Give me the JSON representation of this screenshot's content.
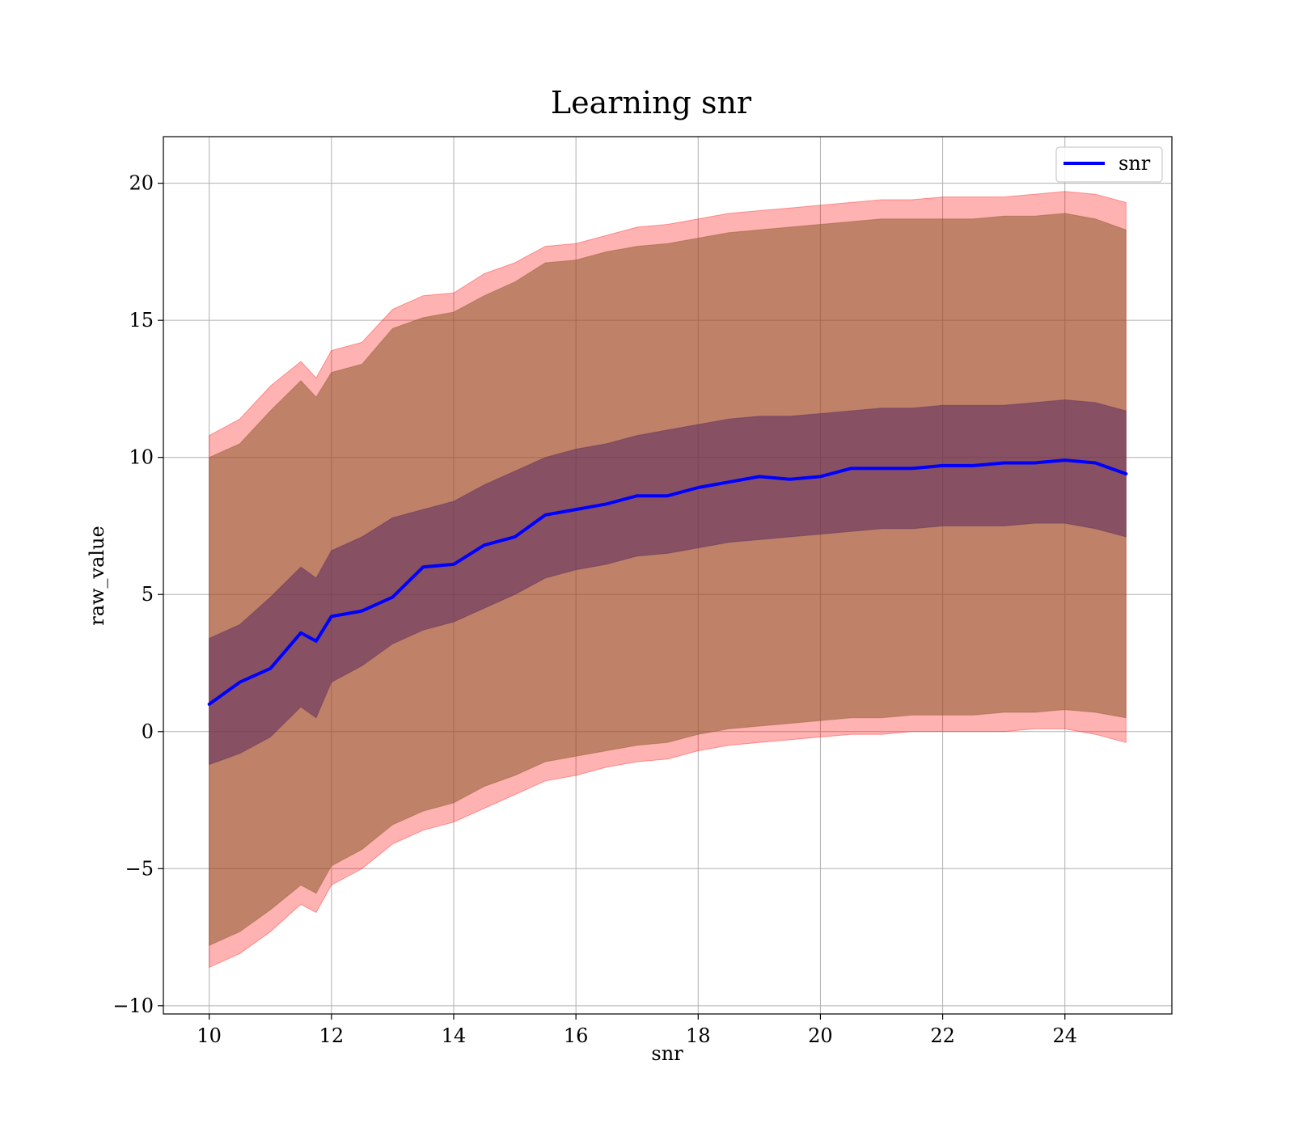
{
  "chart_data": {
    "type": "line",
    "title": "Learning snr",
    "xlabel": "snr",
    "ylabel": "raw_value",
    "xlim": [
      9.25,
      25.75
    ],
    "ylim": [
      -10.3,
      21.7
    ],
    "x_ticks": [
      10,
      12,
      14,
      16,
      18,
      20,
      22,
      24
    ],
    "x_tick_labels": [
      "10",
      "12",
      "14",
      "16",
      "18",
      "20",
      "22",
      "24"
    ],
    "y_ticks": [
      -10,
      -5,
      0,
      5,
      10,
      15,
      20
    ],
    "y_tick_labels": [
      "−10",
      "−5",
      "0",
      "5",
      "10",
      "15",
      "20"
    ],
    "grid": true,
    "legend": {
      "position": "upper right",
      "entries": [
        "snr"
      ]
    },
    "colors": {
      "line": "#0000ff",
      "band_outer": "#ff0000",
      "band_middle": "#8b5a2b",
      "band_inner": "#5a2a5f",
      "grid": "#b0b0b0"
    },
    "x": [
      10.0,
      10.5,
      11.0,
      11.5,
      11.75,
      12.0,
      12.5,
      13.0,
      13.5,
      14.0,
      14.5,
      15.0,
      15.5,
      16.0,
      16.5,
      17.0,
      17.5,
      18.0,
      18.5,
      19.0,
      19.5,
      20.0,
      20.5,
      21.0,
      21.5,
      22.0,
      22.5,
      23.0,
      23.5,
      24.0,
      24.5,
      25.0
    ],
    "series": [
      {
        "name": "snr",
        "role": "mean",
        "values": [
          1.0,
          1.8,
          2.3,
          3.6,
          3.3,
          4.2,
          4.4,
          4.9,
          6.0,
          6.1,
          6.8,
          7.1,
          7.9,
          8.1,
          8.3,
          8.6,
          8.6,
          8.9,
          9.1,
          9.3,
          9.2,
          9.3,
          9.6,
          9.6,
          9.6,
          9.7,
          9.7,
          9.8,
          9.8,
          9.9,
          9.8,
          9.4
        ]
      },
      {
        "role": "band_outer_upper",
        "values": [
          10.8,
          11.4,
          12.6,
          13.5,
          12.9,
          13.9,
          14.2,
          15.4,
          15.9,
          16.0,
          16.7,
          17.1,
          17.7,
          17.8,
          18.1,
          18.4,
          18.5,
          18.7,
          18.9,
          19.0,
          19.1,
          19.2,
          19.3,
          19.4,
          19.4,
          19.5,
          19.5,
          19.5,
          19.6,
          19.7,
          19.6,
          19.3
        ]
      },
      {
        "role": "band_middle_upper",
        "values": [
          10.0,
          10.5,
          11.7,
          12.8,
          12.2,
          13.1,
          13.4,
          14.7,
          15.1,
          15.3,
          15.9,
          16.4,
          17.1,
          17.2,
          17.5,
          17.7,
          17.8,
          18.0,
          18.2,
          18.3,
          18.4,
          18.5,
          18.6,
          18.7,
          18.7,
          18.7,
          18.7,
          18.8,
          18.8,
          18.9,
          18.7,
          18.3
        ]
      },
      {
        "role": "band_inner_upper",
        "values": [
          3.4,
          3.9,
          4.9,
          6.0,
          5.6,
          6.6,
          7.1,
          7.8,
          8.1,
          8.4,
          9.0,
          9.5,
          10.0,
          10.3,
          10.5,
          10.8,
          11.0,
          11.2,
          11.4,
          11.5,
          11.5,
          11.6,
          11.7,
          11.8,
          11.8,
          11.9,
          11.9,
          11.9,
          12.0,
          12.1,
          12.0,
          11.7
        ]
      },
      {
        "role": "band_inner_lower",
        "values": [
          -1.2,
          -0.8,
          -0.2,
          0.9,
          0.5,
          1.8,
          2.4,
          3.2,
          3.7,
          4.0,
          4.5,
          5.0,
          5.6,
          5.9,
          6.1,
          6.4,
          6.5,
          6.7,
          6.9,
          7.0,
          7.1,
          7.2,
          7.3,
          7.4,
          7.4,
          7.5,
          7.5,
          7.5,
          7.6,
          7.6,
          7.4,
          7.1
        ]
      },
      {
        "role": "band_middle_lower",
        "values": [
          -7.8,
          -7.3,
          -6.5,
          -5.6,
          -5.9,
          -4.9,
          -4.3,
          -3.4,
          -2.9,
          -2.6,
          -2.0,
          -1.6,
          -1.1,
          -0.9,
          -0.7,
          -0.5,
          -0.4,
          -0.1,
          0.1,
          0.2,
          0.3,
          0.4,
          0.5,
          0.5,
          0.6,
          0.6,
          0.6,
          0.7,
          0.7,
          0.8,
          0.7,
          0.5
        ]
      },
      {
        "role": "band_outer_lower",
        "values": [
          -8.6,
          -8.1,
          -7.3,
          -6.3,
          -6.6,
          -5.6,
          -5.0,
          -4.1,
          -3.6,
          -3.3,
          -2.8,
          -2.3,
          -1.8,
          -1.6,
          -1.3,
          -1.1,
          -1.0,
          -0.7,
          -0.5,
          -0.4,
          -0.3,
          -0.2,
          -0.1,
          -0.1,
          0.0,
          0.0,
          0.0,
          0.0,
          0.1,
          0.1,
          -0.1,
          -0.4
        ]
      }
    ]
  }
}
